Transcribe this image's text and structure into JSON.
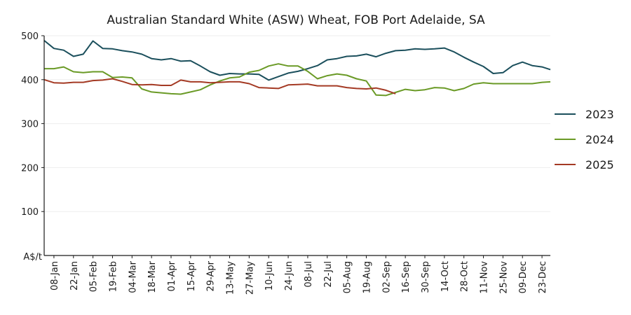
{
  "chart_data": {
    "type": "line",
    "title": "Australian Standard White (ASW) Wheat, FOB Port Adelaide, SA",
    "ylabel": "A$/t",
    "xlabel": "",
    "ylim": [
      0,
      500
    ],
    "yticks": [
      100,
      200,
      300,
      400,
      500
    ],
    "grid": "horizontal",
    "legend_position": "right",
    "x_tick_labels": [
      "08-Jan",
      "22-Jan",
      "05-Feb",
      "19-Feb",
      "04-Mar",
      "18-Mar",
      "01-Apr",
      "15-Apr",
      "29-Apr",
      "13-May",
      "27-May",
      "10-Jun",
      "24-Jun",
      "08-Jul",
      "22-Jul",
      "05-Aug",
      "19-Aug",
      "02-Sep",
      "16-Sep",
      "30-Sep",
      "14-Oct",
      "28-Oct",
      "11-Nov",
      "25-Nov",
      "09-Dec",
      "23-Dec"
    ],
    "x_start_day": 1,
    "x_end_day": 364,
    "series": [
      {
        "name": "2023",
        "color": "#1b4f5c",
        "x_days": [
          1,
          8,
          15,
          22,
          29,
          36,
          43,
          50,
          57,
          64,
          71,
          78,
          85,
          92,
          99,
          106,
          113,
          120,
          127,
          134,
          141,
          148,
          155,
          162,
          169,
          176,
          183,
          190,
          197,
          204,
          211,
          218,
          225,
          232,
          239,
          246,
          253,
          260,
          267,
          274,
          281,
          288,
          295,
          302,
          309,
          316,
          323,
          330,
          337,
          344,
          351,
          358,
          364
        ],
        "values": [
          489,
          471,
          467,
          453,
          458,
          488,
          471,
          470,
          466,
          463,
          458,
          448,
          445,
          448,
          442,
          443,
          431,
          418,
          410,
          414,
          413,
          413,
          412,
          399,
          407,
          415,
          419,
          425,
          432,
          445,
          448,
          453,
          454,
          458,
          452,
          460,
          466,
          467,
          470,
          469,
          470,
          472,
          463,
          451,
          440,
          430,
          414,
          416,
          432,
          440,
          432,
          429,
          423
        ]
      },
      {
        "name": "2024",
        "color": "#6a9a26",
        "x_days": [
          1,
          8,
          15,
          22,
          29,
          36,
          43,
          50,
          57,
          64,
          71,
          78,
          85,
          92,
          99,
          106,
          113,
          120,
          127,
          134,
          141,
          148,
          155,
          162,
          169,
          176,
          183,
          190,
          197,
          204,
          211,
          218,
          225,
          232,
          239,
          246,
          253,
          260,
          267,
          274,
          281,
          288,
          295,
          302,
          309,
          316,
          323,
          330,
          337,
          344,
          351,
          358,
          364
        ],
        "values": [
          425,
          425,
          429,
          418,
          416,
          418,
          418,
          405,
          406,
          404,
          379,
          372,
          370,
          368,
          367,
          372,
          377,
          388,
          397,
          404,
          406,
          417,
          421,
          431,
          436,
          431,
          431,
          419,
          402,
          409,
          413,
          410,
          402,
          397,
          365,
          364,
          371,
          378,
          375,
          377,
          382,
          381,
          375,
          380,
          390,
          393,
          391,
          391,
          391,
          391,
          391,
          394,
          395
        ]
      },
      {
        "name": "2025",
        "color": "#a43a24",
        "x_days": [
          1,
          8,
          15,
          22,
          29,
          36,
          43,
          50,
          57,
          64,
          71,
          78,
          85,
          92,
          99,
          106,
          113,
          120,
          127,
          134,
          141,
          148,
          155,
          162,
          169,
          176,
          183,
          190,
          197,
          204,
          211,
          218,
          225,
          232,
          239,
          246,
          253
        ],
        "values": [
          400,
          393,
          392,
          394,
          394,
          398,
          399,
          402,
          396,
          389,
          388,
          389,
          387,
          387,
          399,
          395,
          395,
          393,
          394,
          395,
          395,
          391,
          382,
          381,
          380,
          388,
          389,
          390,
          386,
          386,
          386,
          382,
          380,
          379,
          381,
          376,
          368
        ]
      }
    ]
  }
}
